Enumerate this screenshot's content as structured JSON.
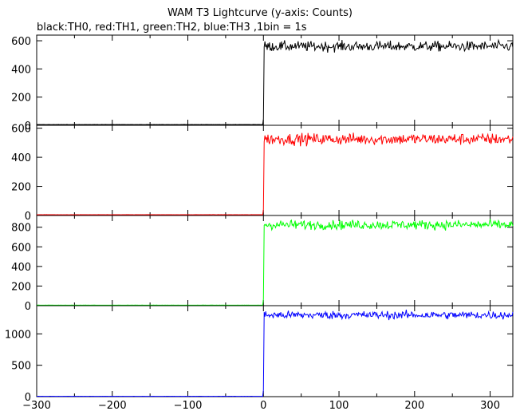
{
  "chart_data": {
    "type": "line",
    "title": "WAM T3 Lightcurve (y-axis: Counts)",
    "subtitle": "black:TH0, red:TH1, green:TH2, blue:TH3 ,1bin = 1s",
    "xlabel": "",
    "ylabel": "",
    "xlim": [
      -300,
      330
    ],
    "x_ticks": [
      -300,
      -200,
      -100,
      0,
      100,
      200,
      300
    ],
    "x_tick_labels": [
      "−300",
      "−200",
      "−100",
      "0",
      "100",
      "200",
      "300"
    ],
    "grid": false,
    "bin_width_s": 1,
    "panels": [
      {
        "name": "TH0",
        "color": "#000000",
        "ylim": [
          0,
          640
        ],
        "y_ticks": [
          0,
          200,
          400,
          600
        ],
        "y_tick_labels": [
          "0",
          "200",
          "400",
          "600"
        ],
        "pre_level": 5,
        "post_level": 560,
        "noise": 18
      },
      {
        "name": "TH1",
        "color": "#ff0000",
        "ylim": [
          0,
          620
        ],
        "y_ticks": [
          0,
          200,
          400,
          600
        ],
        "y_tick_labels": [
          "0",
          "200",
          "400",
          "600"
        ],
        "pre_level": 5,
        "post_level": 525,
        "noise": 20
      },
      {
        "name": "TH2",
        "color": "#00ff00",
        "ylim": [
          0,
          920
        ],
        "y_ticks": [
          0,
          200,
          400,
          600,
          800
        ],
        "y_tick_labels": [
          "0",
          "200",
          "400",
          "600",
          "800"
        ],
        "pre_level": 5,
        "post_level": 825,
        "noise": 24
      },
      {
        "name": "TH3",
        "color": "#0000ff",
        "ylim": [
          0,
          1450
        ],
        "y_ticks": [
          0,
          500,
          1000
        ],
        "y_tick_labels": [
          "0",
          "500",
          "1000"
        ],
        "pre_level": 5,
        "post_level": 1300,
        "noise": 32
      }
    ]
  }
}
